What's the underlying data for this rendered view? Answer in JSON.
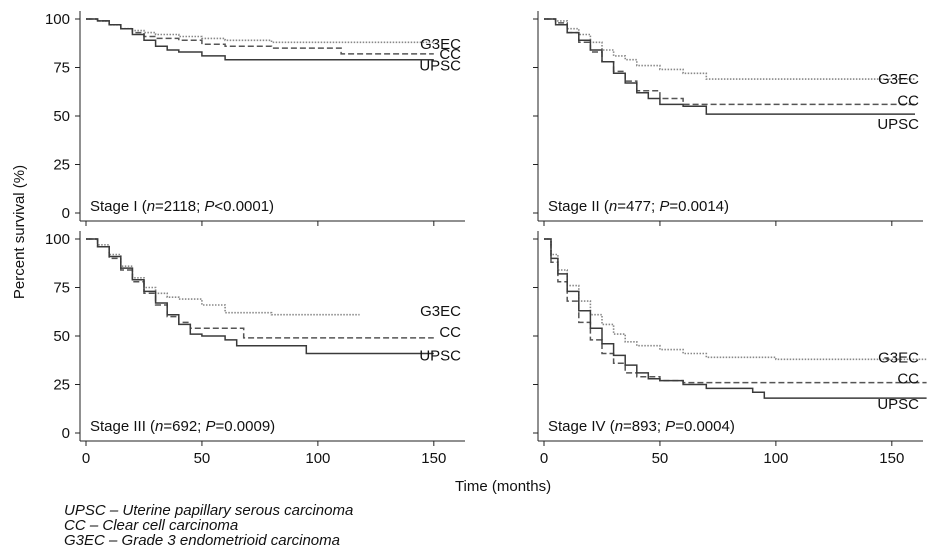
{
  "figure": {
    "ylabel": "Percent survival (%)",
    "xlabel": "Time (months)",
    "legend": [
      {
        "abbr": "UPSC",
        "dash": "–",
        "desc": "Uterine papillary serous carcinoma"
      },
      {
        "abbr": "CC",
        "dash": "–",
        "desc": "Clear cell carcinoma"
      },
      {
        "abbr": "G3EC",
        "dash": "–",
        "desc": "Grade 3 endometrioid carcinoma"
      }
    ]
  },
  "chart_data": [
    {
      "type": "line",
      "panel": "top-left",
      "stage_label": "Stage I",
      "n_label": "n",
      "n_value": "=2118; ",
      "p_label": "P",
      "p_value": "<0.0001)",
      "xlim": [
        0,
        160
      ],
      "ylim": [
        0,
        100
      ],
      "xticks": [
        0,
        50,
        100,
        150
      ],
      "yticks": [
        0,
        25,
        50,
        75,
        100
      ],
      "show_xticks": false,
      "show_yticks": true,
      "series": [
        {
          "name": "G3EC",
          "style": "dotted",
          "points": [
            [
              0,
              100
            ],
            [
              5,
              99
            ],
            [
              10,
              97
            ],
            [
              15,
              95
            ],
            [
              20,
              94
            ],
            [
              25,
              93
            ],
            [
              30,
              92
            ],
            [
              40,
              91
            ],
            [
              50,
              90
            ],
            [
              60,
              89
            ],
            [
              80,
              88
            ],
            [
              100,
              88
            ],
            [
              120,
              88
            ],
            [
              150,
              87
            ]
          ],
          "label_y": 87
        },
        {
          "name": "CC",
          "style": "dashed",
          "points": [
            [
              0,
              100
            ],
            [
              5,
              99
            ],
            [
              10,
              97
            ],
            [
              15,
              95
            ],
            [
              20,
              93
            ],
            [
              25,
              91
            ],
            [
              30,
              90
            ],
            [
              40,
              89
            ],
            [
              50,
              87
            ],
            [
              60,
              86
            ],
            [
              80,
              85
            ],
            [
              100,
              85
            ],
            [
              110,
              82
            ],
            [
              150,
              82
            ]
          ],
          "label_y": 82
        },
        {
          "name": "UPSC",
          "style": "solid",
          "points": [
            [
              0,
              100
            ],
            [
              5,
              99
            ],
            [
              10,
              97
            ],
            [
              15,
              95
            ],
            [
              20,
              92
            ],
            [
              25,
              89
            ],
            [
              30,
              86
            ],
            [
              35,
              84
            ],
            [
              40,
              83
            ],
            [
              50,
              81
            ],
            [
              60,
              79
            ],
            [
              80,
              79
            ],
            [
              100,
              79
            ],
            [
              150,
              79
            ]
          ],
          "label_y": 76
        }
      ]
    },
    {
      "type": "line",
      "panel": "top-right",
      "stage_label": "Stage II",
      "n_label": "n",
      "n_value": "=477; ",
      "p_label": "P",
      "p_value": "=0.0014)",
      "xlim": [
        0,
        160
      ],
      "ylim": [
        0,
        100
      ],
      "xticks": [
        0,
        50,
        100,
        150
      ],
      "yticks": [
        0,
        25,
        50,
        75,
        100
      ],
      "show_xticks": false,
      "show_yticks": false,
      "series": [
        {
          "name": "G3EC",
          "style": "dotted",
          "points": [
            [
              0,
              100
            ],
            [
              5,
              99
            ],
            [
              10,
              95
            ],
            [
              15,
              92
            ],
            [
              20,
              88
            ],
            [
              25,
              84
            ],
            [
              30,
              81
            ],
            [
              35,
              79
            ],
            [
              40,
              76
            ],
            [
              50,
              74
            ],
            [
              60,
              72
            ],
            [
              70,
              69
            ],
            [
              100,
              69
            ],
            [
              160,
              69
            ]
          ],
          "label_y": 69
        },
        {
          "name": "CC",
          "style": "dashed",
          "points": [
            [
              0,
              100
            ],
            [
              5,
              98
            ],
            [
              10,
              93
            ],
            [
              15,
              88
            ],
            [
              20,
              83
            ],
            [
              25,
              78
            ],
            [
              30,
              73
            ],
            [
              35,
              68
            ],
            [
              40,
              63
            ],
            [
              50,
              59
            ],
            [
              60,
              56
            ],
            [
              70,
              56
            ],
            [
              100,
              56
            ],
            [
              160,
              56
            ]
          ],
          "label_y": 58
        },
        {
          "name": "UPSC",
          "style": "solid",
          "points": [
            [
              0,
              100
            ],
            [
              5,
              97
            ],
            [
              10,
              93
            ],
            [
              15,
              89
            ],
            [
              20,
              84
            ],
            [
              25,
              78
            ],
            [
              30,
              72
            ],
            [
              35,
              67
            ],
            [
              40,
              62
            ],
            [
              45,
              59
            ],
            [
              50,
              56
            ],
            [
              60,
              55
            ],
            [
              70,
              51
            ],
            [
              100,
              51
            ],
            [
              160,
              51
            ]
          ],
          "label_y": 46
        }
      ]
    },
    {
      "type": "line",
      "panel": "bottom-left",
      "stage_label": "Stage III",
      "n_label": "n",
      "n_value": "=692; ",
      "p_label": "P",
      "p_value": "=0.0009)",
      "xlim": [
        0,
        160
      ],
      "ylim": [
        0,
        100
      ],
      "xticks": [
        0,
        50,
        100,
        150
      ],
      "yticks": [
        0,
        25,
        50,
        75,
        100
      ],
      "show_xticks": true,
      "show_yticks": true,
      "series": [
        {
          "name": "G3EC",
          "style": "dotted",
          "points": [
            [
              0,
              100
            ],
            [
              5,
              97
            ],
            [
              10,
              92
            ],
            [
              15,
              86
            ],
            [
              20,
              80
            ],
            [
              25,
              75
            ],
            [
              30,
              72
            ],
            [
              35,
              70
            ],
            [
              40,
              69
            ],
            [
              50,
              66
            ],
            [
              60,
              62
            ],
            [
              80,
              61
            ],
            [
              100,
              61
            ],
            [
              118,
              61
            ]
          ],
          "label_y": 63
        },
        {
          "name": "CC",
          "style": "dashed",
          "points": [
            [
              0,
              100
            ],
            [
              5,
              96
            ],
            [
              10,
              90
            ],
            [
              15,
              84
            ],
            [
              20,
              78
            ],
            [
              25,
              72
            ],
            [
              30,
              66
            ],
            [
              35,
              60
            ],
            [
              40,
              57
            ],
            [
              45,
              54
            ],
            [
              50,
              54
            ],
            [
              65,
              54
            ],
            [
              68,
              49
            ],
            [
              100,
              49
            ],
            [
              150,
              49
            ]
          ],
          "label_y": 52
        },
        {
          "name": "UPSC",
          "style": "solid",
          "points": [
            [
              0,
              100
            ],
            [
              5,
              96
            ],
            [
              10,
              91
            ],
            [
              15,
              85
            ],
            [
              20,
              79
            ],
            [
              25,
              73
            ],
            [
              30,
              67
            ],
            [
              35,
              61
            ],
            [
              40,
              56
            ],
            [
              45,
              51
            ],
            [
              50,
              50
            ],
            [
              60,
              48
            ],
            [
              65,
              45
            ],
            [
              95,
              45
            ],
            [
              95,
              41
            ],
            [
              150,
              41
            ]
          ],
          "label_y": 40
        }
      ]
    },
    {
      "type": "line",
      "panel": "bottom-right",
      "stage_label": "Stage IV",
      "n_label": "n",
      "n_value": "=893; ",
      "p_label": "P",
      "p_value": "=0.0004)",
      "xlim": [
        0,
        160
      ],
      "ylim": [
        0,
        100
      ],
      "xticks": [
        0,
        50,
        100,
        150
      ],
      "yticks": [
        0,
        25,
        50,
        75,
        100
      ],
      "show_xticks": true,
      "show_yticks": false,
      "series": [
        {
          "name": "G3EC",
          "style": "dotted",
          "points": [
            [
              0,
              100
            ],
            [
              3,
              92
            ],
            [
              6,
              84
            ],
            [
              10,
              76
            ],
            [
              15,
              68
            ],
            [
              20,
              61
            ],
            [
              25,
              56
            ],
            [
              30,
              51
            ],
            [
              35,
              47
            ],
            [
              40,
              45
            ],
            [
              50,
              43
            ],
            [
              60,
              41
            ],
            [
              70,
              39
            ],
            [
              100,
              38
            ],
            [
              165,
              38
            ]
          ],
          "label_y": 39
        },
        {
          "name": "CC",
          "style": "dashed",
          "points": [
            [
              0,
              100
            ],
            [
              3,
              88
            ],
            [
              6,
              78
            ],
            [
              10,
              68
            ],
            [
              15,
              57
            ],
            [
              20,
              48
            ],
            [
              25,
              41
            ],
            [
              30,
              36
            ],
            [
              35,
              31
            ],
            [
              40,
              29
            ],
            [
              50,
              27
            ],
            [
              60,
              26
            ],
            [
              165,
              26
            ]
          ],
          "label_y": 28
        },
        {
          "name": "UPSC",
          "style": "solid",
          "points": [
            [
              0,
              100
            ],
            [
              3,
              90
            ],
            [
              6,
              82
            ],
            [
              10,
              73
            ],
            [
              15,
              63
            ],
            [
              20,
              54
            ],
            [
              25,
              46
            ],
            [
              30,
              40
            ],
            [
              35,
              35
            ],
            [
              40,
              31
            ],
            [
              45,
              28
            ],
            [
              50,
              27
            ],
            [
              60,
              25
            ],
            [
              70,
              23
            ],
            [
              80,
              23
            ],
            [
              90,
              21
            ],
            [
              95,
              18
            ],
            [
              165,
              18
            ]
          ],
          "label_y": 15
        }
      ]
    }
  ]
}
